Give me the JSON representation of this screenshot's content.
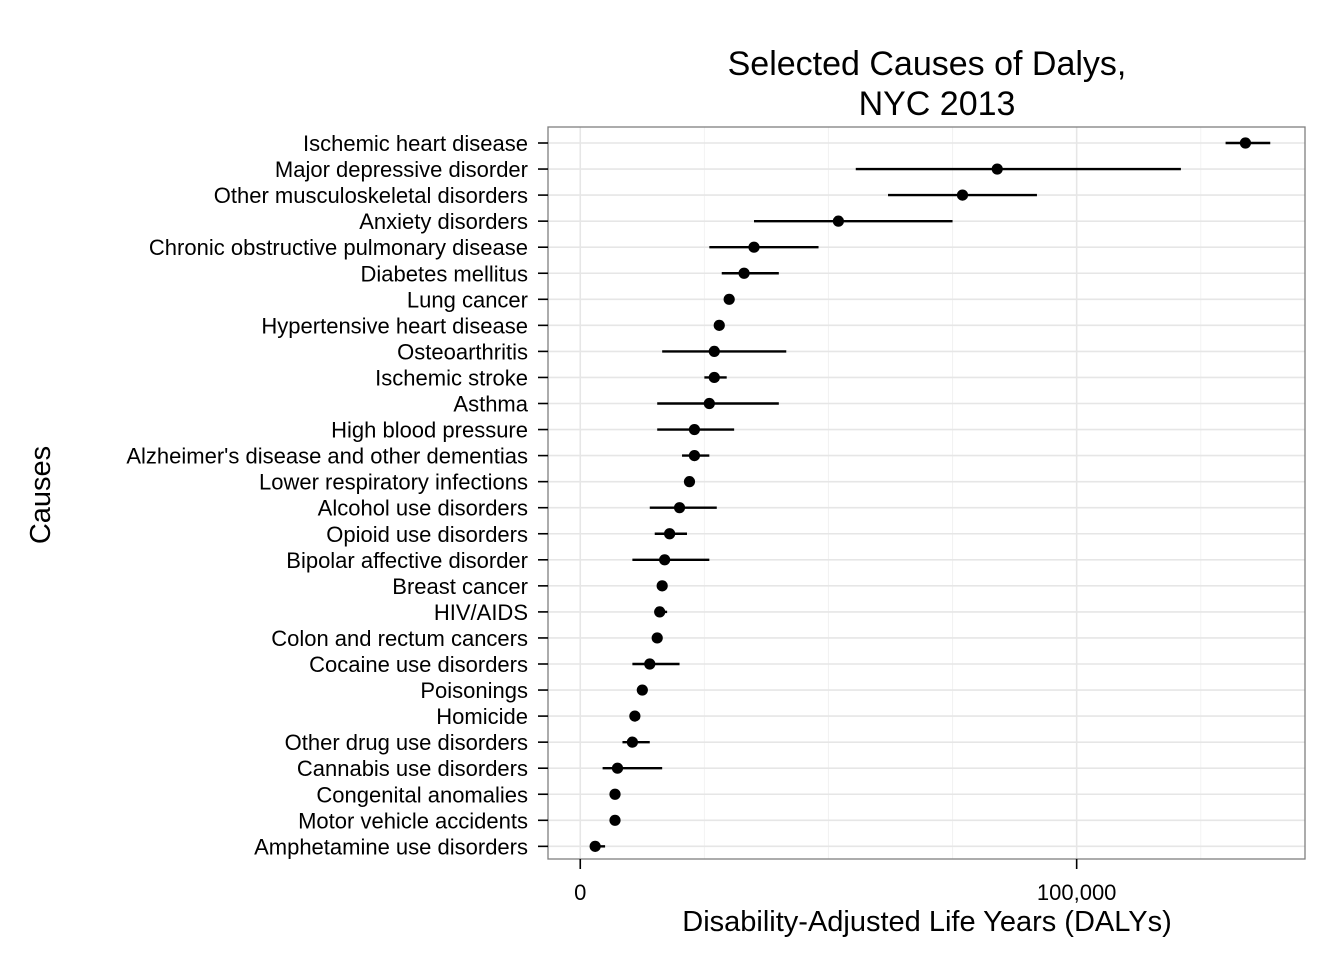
{
  "chart_data": {
    "type": "scatter",
    "subtype": "dot-and-whisker",
    "title": [
      "Selected Causes of Dalys,",
      "NYC 2013"
    ],
    "xlabel": "Disability-Adjusted Life Years (DALYs)",
    "ylabel": "Causes",
    "xlim": [
      -6500,
      146000
    ],
    "x_ticks": [
      {
        "value": 0,
        "label": "0"
      },
      {
        "value": 100000,
        "label": "100,000"
      }
    ],
    "grid": true,
    "legend": "none",
    "point_color": "#000000",
    "categories": [
      {
        "label": "Ischemic heart disease",
        "value": 134000,
        "lower": 130000,
        "upper": 139000
      },
      {
        "label": "Major depressive disorder",
        "value": 84000,
        "lower": 55500,
        "upper": 121000
      },
      {
        "label": "Other musculoskeletal disorders",
        "value": 77000,
        "lower": 62000,
        "upper": 92000
      },
      {
        "label": "Anxiety disorders",
        "value": 52000,
        "lower": 35000,
        "upper": 75000
      },
      {
        "label": "Chronic obstructive pulmonary disease",
        "value": 35000,
        "lower": 26000,
        "upper": 48000
      },
      {
        "label": "Diabetes mellitus",
        "value": 33000,
        "lower": 28500,
        "upper": 40000
      },
      {
        "label": "Lung cancer",
        "value": 30000,
        "lower": null,
        "upper": null
      },
      {
        "label": "Hypertensive heart disease",
        "value": 28000,
        "lower": null,
        "upper": null
      },
      {
        "label": "Osteoarthritis",
        "value": 27000,
        "lower": 16500,
        "upper": 41500
      },
      {
        "label": "Ischemic stroke",
        "value": 27000,
        "lower": 25000,
        "upper": 29500
      },
      {
        "label": "Asthma",
        "value": 26000,
        "lower": 15500,
        "upper": 40000
      },
      {
        "label": "High blood pressure",
        "value": 23000,
        "lower": 15500,
        "upper": 31000
      },
      {
        "label": "Alzheimer's disease and other dementias",
        "value": 23000,
        "lower": 20500,
        "upper": 26000
      },
      {
        "label": "Lower respiratory infections",
        "value": 22000,
        "lower": null,
        "upper": null
      },
      {
        "label": "Alcohol use disorders",
        "value": 20000,
        "lower": 14000,
        "upper": 27500
      },
      {
        "label": "Opioid use disorders",
        "value": 18000,
        "lower": 15000,
        "upper": 21500
      },
      {
        "label": "Bipolar affective disorder",
        "value": 17000,
        "lower": 10500,
        "upper": 26000
      },
      {
        "label": "Breast cancer",
        "value": 16500,
        "lower": null,
        "upper": null
      },
      {
        "label": "HIV/AIDS",
        "value": 16000,
        "lower": 15000,
        "upper": 17500
      },
      {
        "label": "Colon and rectum cancers",
        "value": 15500,
        "lower": null,
        "upper": null
      },
      {
        "label": "Cocaine use disorders",
        "value": 14000,
        "lower": 10500,
        "upper": 20000
      },
      {
        "label": "Poisonings",
        "value": 12500,
        "lower": null,
        "upper": null
      },
      {
        "label": "Homicide",
        "value": 11000,
        "lower": null,
        "upper": null
      },
      {
        "label": "Other drug use disorders",
        "value": 10500,
        "lower": 8500,
        "upper": 14000
      },
      {
        "label": "Cannabis use disorders",
        "value": 7500,
        "lower": 4500,
        "upper": 16500
      },
      {
        "label": "Congenital anomalies",
        "value": 7000,
        "lower": null,
        "upper": null
      },
      {
        "label": "Motor vehicle accidents",
        "value": 7000,
        "lower": null,
        "upper": null
      },
      {
        "label": "Amphetamine use disorders",
        "value": 3000,
        "lower": 2000,
        "upper": 5000
      }
    ]
  }
}
